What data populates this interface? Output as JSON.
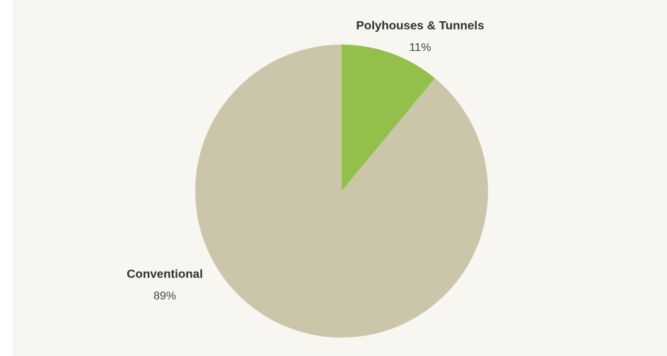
{
  "chart_data": {
    "type": "pie",
    "categories": [
      "Polyhouses & Tunnels",
      "Conventional"
    ],
    "values": [
      11,
      89
    ],
    "value_labels": [
      "11%",
      "89%"
    ],
    "colors": [
      "#93c04a",
      "#cbc6aa"
    ]
  }
}
